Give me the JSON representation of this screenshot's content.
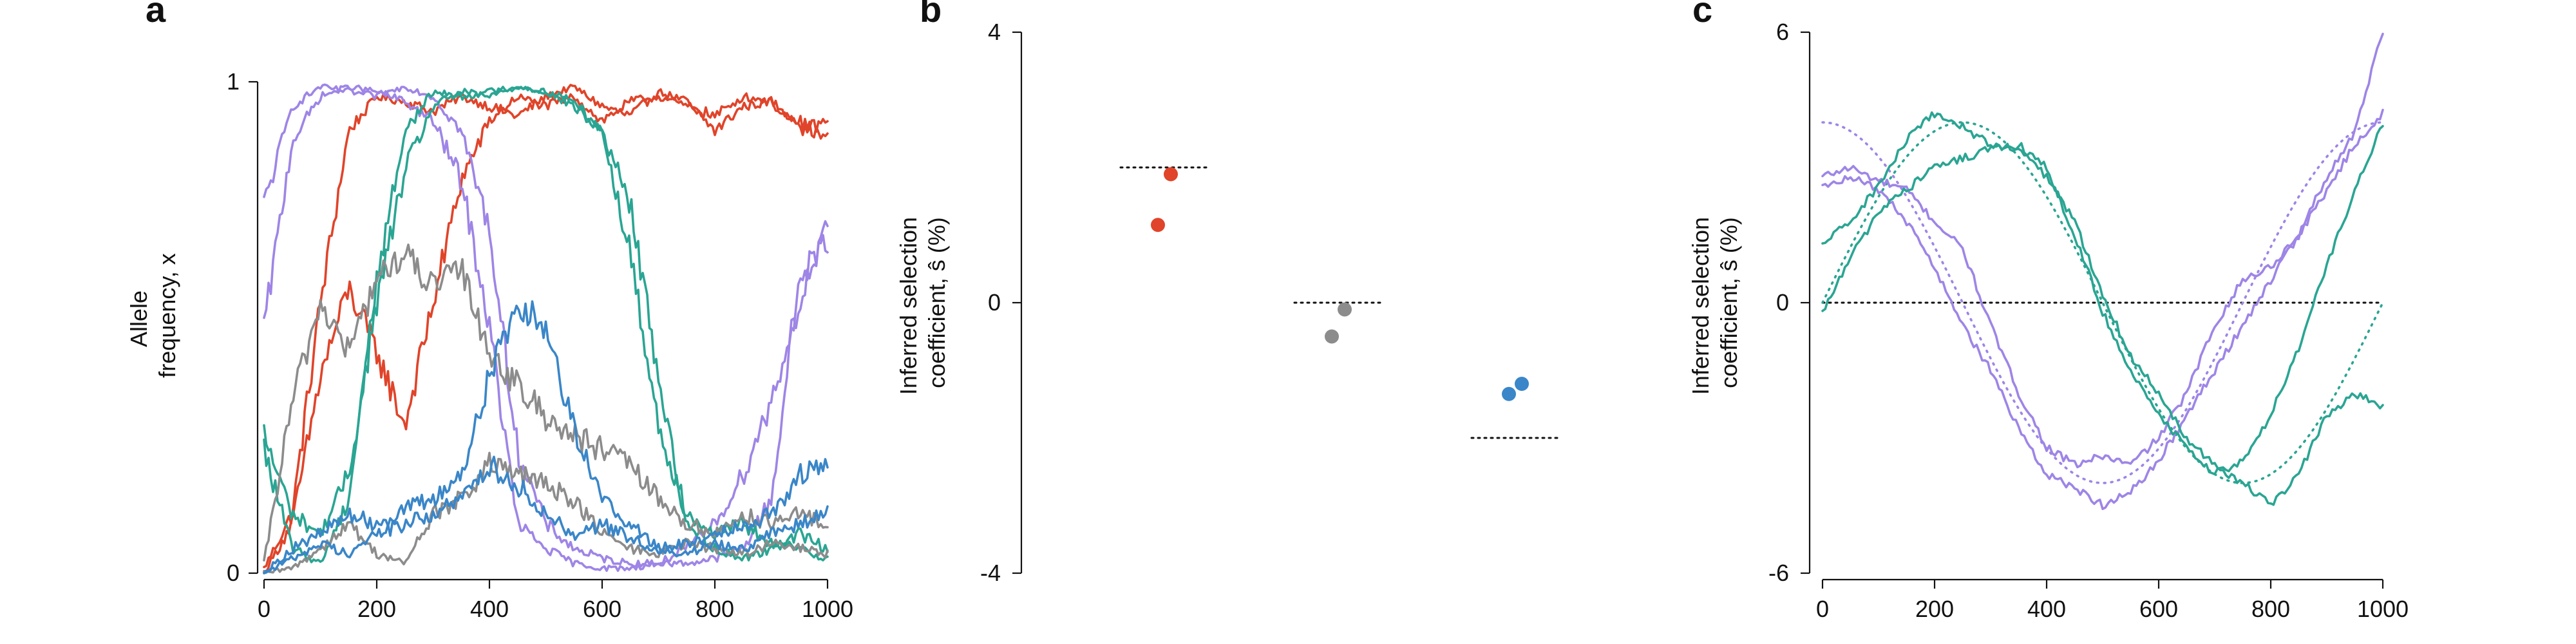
{
  "panels": {
    "a": {
      "letter": "a"
    },
    "b": {
      "letter": "b"
    },
    "c": {
      "letter": "c"
    }
  },
  "chart_data": [
    {
      "panel": "a",
      "type": "line",
      "title": "",
      "xlabel": "",
      "ylabel": "Allele frequency, x",
      "ylabel_lines": [
        "Allele",
        "frequency, x"
      ],
      "xlim": [
        0,
        1000
      ],
      "ylim": [
        0,
        1
      ],
      "xticks": [
        0,
        200,
        400,
        600,
        800,
        1000
      ],
      "xtick_labels": [
        "0",
        "200",
        "400",
        "600",
        "800",
        "1000"
      ],
      "yticks": [
        0,
        1
      ],
      "ytick_labels": [
        "0",
        "1"
      ],
      "grid": false,
      "colors": {
        "red": "#e0442a",
        "purple": "#9e85e6",
        "teal": "#2aa593",
        "gray": "#8c8c8c",
        "blue": "#3a86c8"
      },
      "series": [
        {
          "color": "#e0442a",
          "x": [
            0,
            50,
            100,
            150,
            200,
            250,
            300,
            350,
            400,
            450,
            500,
            550,
            600,
            650,
            700,
            750,
            800,
            850,
            900,
            950,
            1000
          ],
          "values": [
            0.01,
            0.12,
            0.55,
            0.9,
            0.97,
            0.96,
            0.94,
            0.97,
            0.95,
            0.93,
            0.97,
            0.99,
            0.95,
            0.93,
            0.98,
            0.96,
            0.9,
            0.95,
            0.96,
            0.92,
            0.88
          ]
        },
        {
          "color": "#e0442a",
          "x": [
            0,
            50,
            100,
            150,
            200,
            250,
            300,
            350,
            400,
            450,
            500,
            550,
            600,
            650,
            700,
            750,
            800,
            850,
            900,
            950,
            1000
          ],
          "values": [
            0.0,
            0.1,
            0.4,
            0.58,
            0.45,
            0.3,
            0.55,
            0.8,
            0.92,
            0.97,
            0.95,
            0.97,
            0.92,
            0.96,
            0.97,
            0.95,
            0.93,
            0.97,
            0.96,
            0.9,
            0.92
          ]
        },
        {
          "color": "#9e85e6",
          "x": [
            0,
            50,
            100,
            150,
            200,
            250,
            300,
            350,
            400,
            450,
            500,
            550,
            600,
            650,
            700,
            750,
            800,
            850,
            900,
            950,
            1000
          ],
          "values": [
            0.75,
            0.95,
            0.99,
            0.98,
            0.97,
            0.99,
            0.97,
            0.9,
            0.7,
            0.25,
            0.1,
            0.05,
            0.03,
            0.02,
            0.02,
            0.02,
            0.03,
            0.05,
            0.15,
            0.6,
            0.68
          ]
        },
        {
          "color": "#9e85e6",
          "x": [
            0,
            50,
            100,
            150,
            200,
            250,
            300,
            350,
            400,
            450,
            500,
            550,
            600,
            650,
            700,
            750,
            800,
            850,
            900,
            950,
            1000
          ],
          "values": [
            0.5,
            0.88,
            0.97,
            0.99,
            0.98,
            0.96,
            0.92,
            0.8,
            0.5,
            0.1,
            0.05,
            0.02,
            0.01,
            0.01,
            0.02,
            0.05,
            0.1,
            0.2,
            0.35,
            0.55,
            0.7
          ]
        },
        {
          "color": "#2aa593",
          "x": [
            0,
            50,
            100,
            150,
            200,
            250,
            300,
            350,
            400,
            450,
            500,
            550,
            600,
            650,
            700,
            750,
            800,
            850,
            900,
            950,
            1000
          ],
          "values": [
            0.28,
            0.12,
            0.08,
            0.2,
            0.55,
            0.82,
            0.95,
            0.98,
            0.97,
            0.99,
            0.98,
            0.95,
            0.9,
            0.75,
            0.4,
            0.1,
            0.05,
            0.03,
            0.05,
            0.08,
            0.05
          ]
        },
        {
          "color": "#2aa593",
          "x": [
            0,
            50,
            100,
            150,
            200,
            250,
            300,
            350,
            400,
            450,
            500,
            550,
            600,
            650,
            700,
            750,
            800,
            850,
            900,
            950,
            1000
          ],
          "values": [
            0.25,
            0.05,
            0.02,
            0.15,
            0.6,
            0.9,
            0.98,
            0.97,
            0.98,
            0.99,
            0.98,
            0.96,
            0.9,
            0.65,
            0.3,
            0.12,
            0.08,
            0.1,
            0.06,
            0.05,
            0.03
          ]
        },
        {
          "color": "#8c8c8c",
          "x": [
            0,
            50,
            100,
            150,
            200,
            250,
            300,
            350,
            400,
            450,
            500,
            550,
            600,
            650,
            700,
            750,
            800,
            850,
            900,
            950,
            1000
          ],
          "values": [
            0.02,
            0.35,
            0.55,
            0.45,
            0.6,
            0.65,
            0.58,
            0.62,
            0.45,
            0.38,
            0.32,
            0.28,
            0.25,
            0.22,
            0.15,
            0.1,
            0.08,
            0.12,
            0.1,
            0.12,
            0.1
          ]
        },
        {
          "color": "#8c8c8c",
          "x": [
            0,
            50,
            100,
            150,
            200,
            250,
            300,
            350,
            400,
            450,
            500,
            550,
            600,
            650,
            700,
            750,
            800,
            850,
            900,
            950,
            1000
          ],
          "values": [
            0.0,
            0.01,
            0.05,
            0.1,
            0.04,
            0.02,
            0.12,
            0.15,
            0.22,
            0.2,
            0.18,
            0.15,
            0.08,
            0.05,
            0.04,
            0.06,
            0.05,
            0.04,
            0.06,
            0.05,
            0.04
          ]
        },
        {
          "color": "#3a86c8",
          "x": [
            0,
            50,
            100,
            150,
            200,
            250,
            300,
            350,
            400,
            450,
            500,
            550,
            600,
            650,
            700,
            750,
            800,
            850,
            900,
            950,
            1000
          ],
          "values": [
            0.0,
            0.05,
            0.08,
            0.12,
            0.1,
            0.13,
            0.15,
            0.2,
            0.4,
            0.55,
            0.5,
            0.3,
            0.15,
            0.1,
            0.05,
            0.06,
            0.08,
            0.1,
            0.12,
            0.2,
            0.22
          ]
        },
        {
          "color": "#3a86c8",
          "x": [
            0,
            50,
            100,
            150,
            200,
            250,
            300,
            350,
            400,
            450,
            500,
            550,
            600,
            650,
            700,
            750,
            800,
            850,
            900,
            950,
            1000
          ],
          "values": [
            0.0,
            0.03,
            0.06,
            0.04,
            0.08,
            0.1,
            0.12,
            0.15,
            0.22,
            0.18,
            0.12,
            0.08,
            0.1,
            0.07,
            0.05,
            0.04,
            0.06,
            0.05,
            0.08,
            0.1,
            0.12
          ]
        }
      ]
    },
    {
      "panel": "b",
      "type": "scatter",
      "title": "",
      "xlabel": "",
      "ylabel": "Inferred selection coefficient, ŝ (%)",
      "ylabel_lines": [
        "Inferred selection",
        "coefficient, ŝ (%)"
      ],
      "ylim": [
        -4,
        4
      ],
      "yticks": [
        -4,
        0,
        4
      ],
      "ytick_labels": [
        "-4",
        "0",
        "4"
      ],
      "grid": false,
      "groups": [
        {
          "color": "#e0442a",
          "true_value": 2.0,
          "points": [
            1.9,
            1.15
          ]
        },
        {
          "color": "#8c8c8c",
          "true_value": 0.0,
          "points": [
            -0.1,
            -0.5
          ]
        },
        {
          "color": "#3a86c8",
          "true_value": -2.0,
          "points": [
            -1.2,
            -1.35
          ]
        }
      ]
    },
    {
      "panel": "c",
      "type": "line",
      "title": "",
      "xlabel": "",
      "ylabel": "Inferred selection coefficient, ŝ (%)",
      "ylabel_lines": [
        "Inferred selection",
        "coefficient, ŝ (%)"
      ],
      "xlim": [
        0,
        1000
      ],
      "ylim": [
        -6,
        6
      ],
      "xticks": [
        0,
        200,
        400,
        600,
        800,
        1000
      ],
      "xtick_labels": [
        "0",
        "200",
        "400",
        "600",
        "800",
        "1000"
      ],
      "yticks": [
        -6,
        0,
        6
      ],
      "ytick_labels": [
        "-6",
        "0",
        "6"
      ],
      "grid": false,
      "series": [
        {
          "color": "#9e85e6",
          "x": [
            0,
            50,
            100,
            150,
            200,
            250,
            300,
            350,
            400,
            450,
            500,
            550,
            600,
            650,
            700,
            750,
            800,
            850,
            900,
            950,
            1000
          ],
          "values": [
            2.8,
            3.0,
            2.7,
            2.5,
            1.8,
            1.2,
            -0.5,
            -2.0,
            -3.2,
            -3.6,
            -3.4,
            -3.6,
            -3.0,
            -2.0,
            -0.5,
            0.5,
            0.8,
            1.5,
            2.5,
            3.5,
            4.2
          ]
        },
        {
          "color": "#9e85e6",
          "x": [
            0,
            50,
            100,
            150,
            200,
            250,
            300,
            350,
            400,
            450,
            500,
            550,
            600,
            650,
            700,
            750,
            800,
            850,
            900,
            950,
            1000
          ],
          "values": [
            2.6,
            2.8,
            2.5,
            1.8,
            0.8,
            -0.5,
            -1.5,
            -2.8,
            -3.8,
            -4.1,
            -4.5,
            -4.2,
            -3.5,
            -2.5,
            -1.5,
            -0.5,
            0.5,
            1.5,
            2.8,
            3.8,
            6.0
          ]
        },
        {
          "color": "#2aa593",
          "x": [
            0,
            50,
            100,
            150,
            200,
            250,
            300,
            350,
            400,
            450,
            500,
            550,
            600,
            650,
            700,
            750,
            800,
            850,
            900,
            950,
            1000
          ],
          "values": [
            1.3,
            1.8,
            2.6,
            3.6,
            4.2,
            3.9,
            3.5,
            3.4,
            2.8,
            1.8,
            0.2,
            -1.2,
            -2.0,
            -3.0,
            -3.6,
            -4.0,
            -4.5,
            -3.8,
            -2.5,
            -2.0,
            -2.3
          ]
        },
        {
          "color": "#2aa593",
          "x": [
            0,
            50,
            100,
            150,
            200,
            250,
            300,
            350,
            400,
            450,
            500,
            550,
            600,
            650,
            700,
            750,
            800,
            850,
            900,
            950,
            1000
          ],
          "values": [
            -0.2,
            1.0,
            2.0,
            2.5,
            3.0,
            3.2,
            3.4,
            3.5,
            3.0,
            1.5,
            -0.2,
            -1.5,
            -2.5,
            -3.2,
            -3.8,
            -3.5,
            -2.5,
            -1.0,
            0.8,
            2.5,
            4.0
          ]
        }
      ],
      "theory": [
        {
          "color": "#9e85e6",
          "amplitude": 4,
          "period": 1000,
          "phase": "cos"
        },
        {
          "color": "#2aa593",
          "amplitude": 4,
          "period": 1000,
          "phase": "shifted"
        }
      ]
    }
  ]
}
